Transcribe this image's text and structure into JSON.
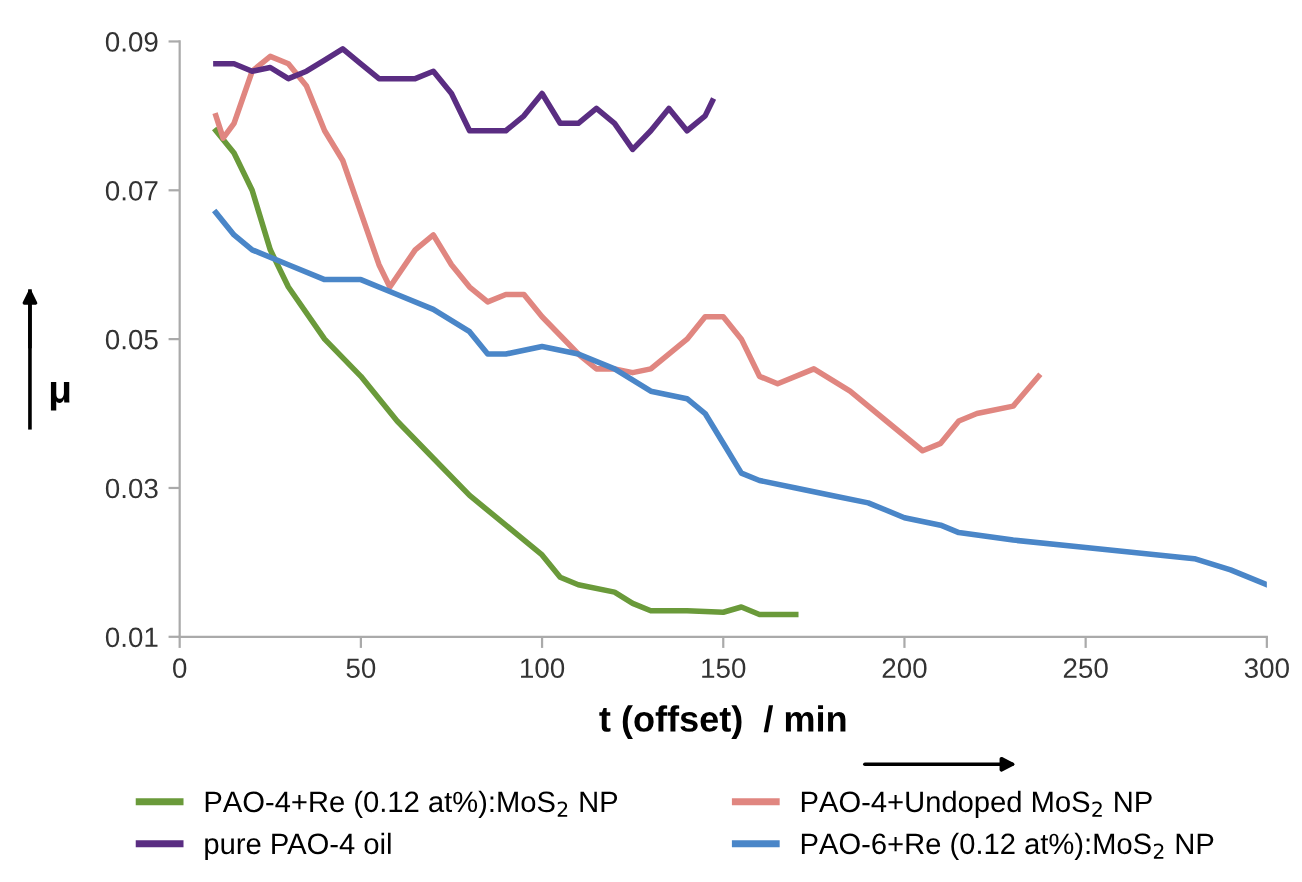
{
  "chart_data": {
    "type": "line",
    "xlabel": "t (offset)  / min",
    "ylabel": "μ",
    "xlim": [
      0,
      300
    ],
    "xticks": [
      0,
      50,
      100,
      150,
      200,
      250,
      300
    ],
    "ylim": [
      0.01,
      0.09
    ],
    "yticks": [
      0.01,
      0.03,
      0.05,
      0.07,
      0.09
    ],
    "grid": false,
    "legend": "bottom",
    "marker": "none",
    "line_style": "solid",
    "series": [
      {
        "name": "PAO-4+Re (0.12 at%):MoS$_{2}$ NP",
        "color": "#6a9a3a",
        "x": [
          10,
          15,
          20,
          25,
          30,
          40,
          50,
          60,
          70,
          80,
          90,
          100,
          105,
          110,
          120,
          125,
          130,
          140,
          150,
          155,
          160,
          170
        ],
        "values": [
          0.078,
          0.075,
          0.07,
          0.062,
          0.057,
          0.05,
          0.045,
          0.039,
          0.034,
          0.029,
          0.025,
          0.021,
          0.018,
          0.017,
          0.016,
          0.0145,
          0.0135,
          0.0135,
          0.0133,
          0.014,
          0.013,
          0.013
        ]
      },
      {
        "name": "PAO-4+Undoped MoS$_{2}$ NP",
        "color": "#e08680",
        "x": [
          10,
          12,
          15,
          20,
          25,
          30,
          35,
          40,
          45,
          50,
          55,
          58,
          65,
          70,
          75,
          80,
          85,
          90,
          95,
          100,
          110,
          115,
          120,
          125,
          130,
          140,
          145,
          150,
          155,
          160,
          165,
          175,
          185,
          195,
          205,
          210,
          215,
          220,
          230,
          237
        ],
        "values": [
          0.08,
          0.077,
          0.079,
          0.086,
          0.088,
          0.087,
          0.084,
          0.078,
          0.074,
          0.067,
          0.06,
          0.057,
          0.062,
          0.064,
          0.06,
          0.057,
          0.055,
          0.056,
          0.056,
          0.053,
          0.048,
          0.046,
          0.046,
          0.0455,
          0.046,
          0.05,
          0.053,
          0.053,
          0.05,
          0.045,
          0.044,
          0.046,
          0.043,
          0.039,
          0.035,
          0.036,
          0.039,
          0.04,
          0.041,
          0.045
        ]
      },
      {
        "name": "pure PAO-4 oil",
        "color": "#5a2d82",
        "x": [
          10,
          15,
          20,
          25,
          30,
          35,
          40,
          45,
          50,
          55,
          60,
          65,
          70,
          75,
          80,
          85,
          90,
          95,
          100,
          105,
          110,
          115,
          120,
          125,
          130,
          135,
          140,
          145,
          147
        ],
        "values": [
          0.087,
          0.087,
          0.086,
          0.0865,
          0.085,
          0.086,
          0.0875,
          0.089,
          0.087,
          0.085,
          0.085,
          0.085,
          0.086,
          0.083,
          0.078,
          0.078,
          0.078,
          0.08,
          0.083,
          0.079,
          0.079,
          0.081,
          0.079,
          0.0755,
          0.078,
          0.081,
          0.078,
          0.08,
          0.082
        ]
      },
      {
        "name": "PAO-6+Re (0.12 at%):MoS$_{2}$ NP",
        "color": "#4a86c8",
        "x": [
          10,
          15,
          20,
          30,
          40,
          50,
          60,
          70,
          80,
          85,
          90,
          100,
          110,
          120,
          130,
          140,
          145,
          150,
          155,
          160,
          170,
          180,
          190,
          195,
          200,
          210,
          215,
          230,
          250,
          270,
          280,
          290,
          300
        ],
        "values": [
          0.067,
          0.064,
          0.062,
          0.06,
          0.058,
          0.058,
          0.056,
          0.054,
          0.051,
          0.048,
          0.048,
          0.049,
          0.048,
          0.046,
          0.043,
          0.042,
          0.04,
          0.036,
          0.032,
          0.031,
          0.03,
          0.029,
          0.028,
          0.027,
          0.026,
          0.025,
          0.024,
          0.023,
          0.022,
          0.021,
          0.0205,
          0.019,
          0.017
        ]
      }
    ]
  }
}
